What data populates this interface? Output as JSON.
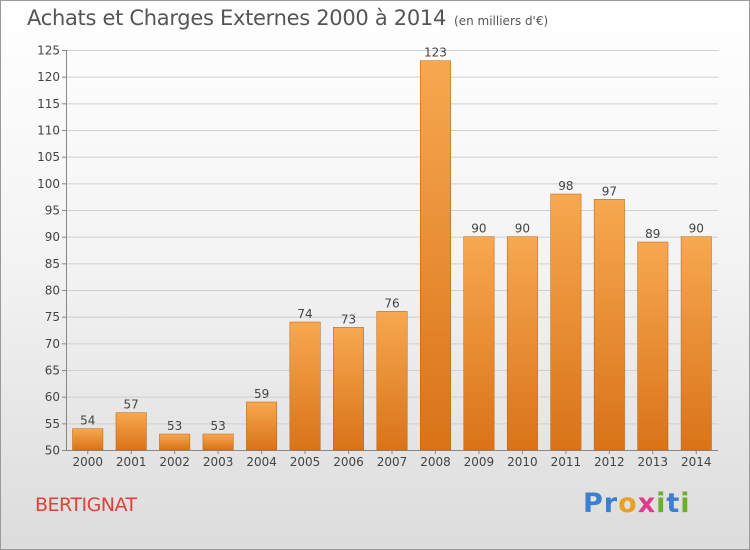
{
  "header": {
    "title": "Achats et Charges Externes 2000 à 2014",
    "unit": "(en milliers d'€)"
  },
  "footer": {
    "commune": "BERTIGNAT",
    "logo_letters": [
      {
        "char": "P",
        "color": "#3a7fd0"
      },
      {
        "char": "r",
        "color": "#3a7fd0"
      },
      {
        "char": "o",
        "color": "#e8a020"
      },
      {
        "char": "x",
        "color": "#e03a8a"
      },
      {
        "char": "i",
        "color": "#6ab02e"
      },
      {
        "char": "t",
        "color": "#3a7fd0"
      },
      {
        "char": "i",
        "color": "#6ab02e"
      }
    ]
  },
  "colors": {
    "bar_top": "#f7a850",
    "bar_bottom": "#d97318",
    "bar_edge": "#b85e10",
    "grid": "#d0d0d0"
  },
  "chart_data": {
    "type": "bar",
    "title": "Achats et Charges Externes 2000 à 2014",
    "subtitle": "(en milliers d'€)",
    "xlabel": "",
    "ylabel": "",
    "categories": [
      "2000",
      "2001",
      "2002",
      "2003",
      "2004",
      "2005",
      "2006",
      "2007",
      "2008",
      "2009",
      "2010",
      "2011",
      "2012",
      "2013",
      "2014"
    ],
    "values": [
      54,
      57,
      53,
      53,
      59,
      74,
      73,
      76,
      123,
      90,
      90,
      98,
      97,
      89,
      90
    ],
    "ylim": [
      50,
      125
    ],
    "yticks": [
      50,
      55,
      60,
      65,
      70,
      75,
      80,
      85,
      90,
      95,
      100,
      105,
      110,
      115,
      120,
      125
    ],
    "grid": true,
    "legend": "none"
  }
}
